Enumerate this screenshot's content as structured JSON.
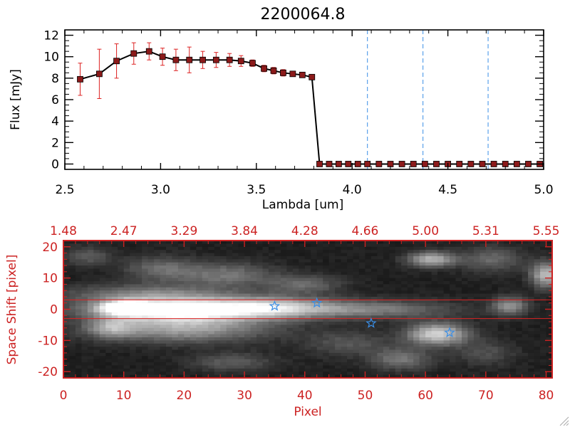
{
  "chart_data": [
    {
      "type": "line",
      "title": "2200064.8",
      "xlabel": "Lambda [um]",
      "ylabel": "Flux [mJy]",
      "xlim": [
        2.5,
        5.0
      ],
      "ylim": [
        -0.5,
        12.5
      ],
      "x_ticks": [
        2.5,
        3.0,
        3.5,
        4.0,
        4.5,
        5.0
      ],
      "x_tick_labels": [
        "2.5",
        "3.0",
        "3.5",
        "4.0",
        "4.5",
        "5.0"
      ],
      "y_ticks": [
        0,
        2,
        4,
        6,
        8,
        10,
        12
      ],
      "y_tick_labels": [
        "0",
        "2",
        "4",
        "6",
        "8",
        "10",
        "12"
      ],
      "vertical_lines": [
        4.08,
        4.37,
        4.71
      ],
      "colors": {
        "line": "#000000",
        "marker": "#8b1a1a",
        "errorbar": "#dd2222",
        "vline": "#3a8ee6"
      },
      "series": [
        {
          "name": "flux",
          "x": [
            2.58,
            2.68,
            2.77,
            2.86,
            2.94,
            3.01,
            3.08,
            3.15,
            3.22,
            3.29,
            3.36,
            3.42,
            3.48,
            3.54,
            3.59,
            3.64,
            3.69,
            3.74,
            3.79,
            3.83,
            3.88,
            3.93,
            3.98,
            4.03,
            4.08,
            4.14,
            4.2,
            4.26,
            4.32,
            4.38,
            4.44,
            4.5,
            4.56,
            4.62,
            4.68,
            4.74,
            4.8,
            4.86,
            4.92,
            4.98
          ],
          "y": [
            7.9,
            8.4,
            9.6,
            10.3,
            10.5,
            10.0,
            9.7,
            9.7,
            9.7,
            9.7,
            9.7,
            9.6,
            9.4,
            8.9,
            8.7,
            8.5,
            8.4,
            8.3,
            8.1,
            0,
            0,
            0,
            0,
            0,
            0,
            0,
            0,
            0,
            0,
            0,
            0,
            0,
            0,
            0,
            0,
            0,
            0,
            0,
            0,
            0
          ],
          "err": [
            1.5,
            2.3,
            1.6,
            1.0,
            0.8,
            0.8,
            1.0,
            1.2,
            0.8,
            0.7,
            0.6,
            0.5,
            0.3,
            0.3,
            0.3,
            0.3,
            0.2,
            0.2,
            0.2,
            0,
            0,
            0,
            0,
            0,
            0,
            0,
            0,
            0,
            0,
            0,
            0,
            0,
            0,
            0,
            0,
            0,
            0,
            0,
            0,
            0
          ]
        }
      ]
    },
    {
      "type": "heatmap",
      "xlabel": "Pixel",
      "ylabel": "Space Shift [pixel]",
      "xlim": [
        0,
        81
      ],
      "ylim": [
        -22,
        22
      ],
      "x_ticks": [
        0,
        10,
        20,
        30,
        40,
        50,
        60,
        70,
        80
      ],
      "x_tick_labels": [
        "0",
        "10",
        "20",
        "30",
        "40",
        "50",
        "60",
        "70",
        "80"
      ],
      "y_ticks": [
        -20,
        -10,
        0,
        10,
        20
      ],
      "y_tick_labels": [
        "-20",
        "-10",
        "0",
        "10",
        "20"
      ],
      "top_axis_label_positions": [
        0,
        10,
        20,
        30,
        40,
        50,
        60,
        70,
        80
      ],
      "top_axis_labels": [
        "1.48",
        "2.47",
        "3.29",
        "3.84",
        "4.28",
        "4.66",
        "5.00",
        "5.31",
        "5.55"
      ],
      "extraction_band": [
        -3,
        3
      ],
      "colors": {
        "axes": "#cc2222",
        "band": "#dd2222",
        "star": "#3a8ee6"
      },
      "stars": [
        {
          "x": 35,
          "y": 1
        },
        {
          "x": 42,
          "y": 2
        },
        {
          "x": 51,
          "y": -4.5
        },
        {
          "x": 64,
          "y": -7.5
        }
      ],
      "blobs": [
        {
          "x": 18,
          "y": 0,
          "rx": 13,
          "ry": 3.5,
          "peak": 1.0
        },
        {
          "x": 10,
          "y": 0.5,
          "rx": 4,
          "ry": 2.2,
          "peak": 0.7
        },
        {
          "x": 34,
          "y": 0.5,
          "rx": 10,
          "ry": 3.5,
          "peak": 0.6
        },
        {
          "x": 50,
          "y": 0,
          "rx": 14,
          "ry": 3,
          "peak": 0.4
        },
        {
          "x": 14,
          "y": 5,
          "rx": 14,
          "ry": 3,
          "peak": 0.35
        },
        {
          "x": 20,
          "y": -6,
          "rx": 14,
          "ry": 4.5,
          "peak": 0.55
        },
        {
          "x": 8,
          "y": -6,
          "rx": 4,
          "ry": 3,
          "peak": 0.4
        },
        {
          "x": 27,
          "y": 11,
          "rx": 8,
          "ry": 4,
          "peak": 0.35
        },
        {
          "x": 16,
          "y": 13,
          "rx": 6,
          "ry": 4,
          "peak": 0.3
        },
        {
          "x": 40,
          "y": 8,
          "rx": 6,
          "ry": 3,
          "peak": 0.3
        },
        {
          "x": 62,
          "y": -8,
          "rx": 5,
          "ry": 3.5,
          "peak": 0.75
        },
        {
          "x": 61,
          "y": 16,
          "rx": 4,
          "ry": 2.5,
          "peak": 0.6
        },
        {
          "x": 80,
          "y": 11,
          "rx": 2.5,
          "ry": 4,
          "peak": 0.65
        },
        {
          "x": 74,
          "y": 1,
          "rx": 3,
          "ry": 3,
          "peak": 0.45
        },
        {
          "x": 56,
          "y": -16,
          "rx": 5,
          "ry": 3.5,
          "peak": 0.35
        },
        {
          "x": 71,
          "y": 16,
          "rx": 5,
          "ry": 4,
          "peak": 0.3
        },
        {
          "x": 28,
          "y": -17,
          "rx": 7,
          "ry": 3,
          "peak": 0.25
        },
        {
          "x": 47,
          "y": -11,
          "rx": 7,
          "ry": 4,
          "peak": 0.22
        },
        {
          "x": 4,
          "y": 17,
          "rx": 4,
          "ry": 3,
          "peak": 0.25
        },
        {
          "x": 70,
          "y": -14,
          "rx": 5,
          "ry": 4,
          "peak": 0.2
        }
      ]
    }
  ]
}
